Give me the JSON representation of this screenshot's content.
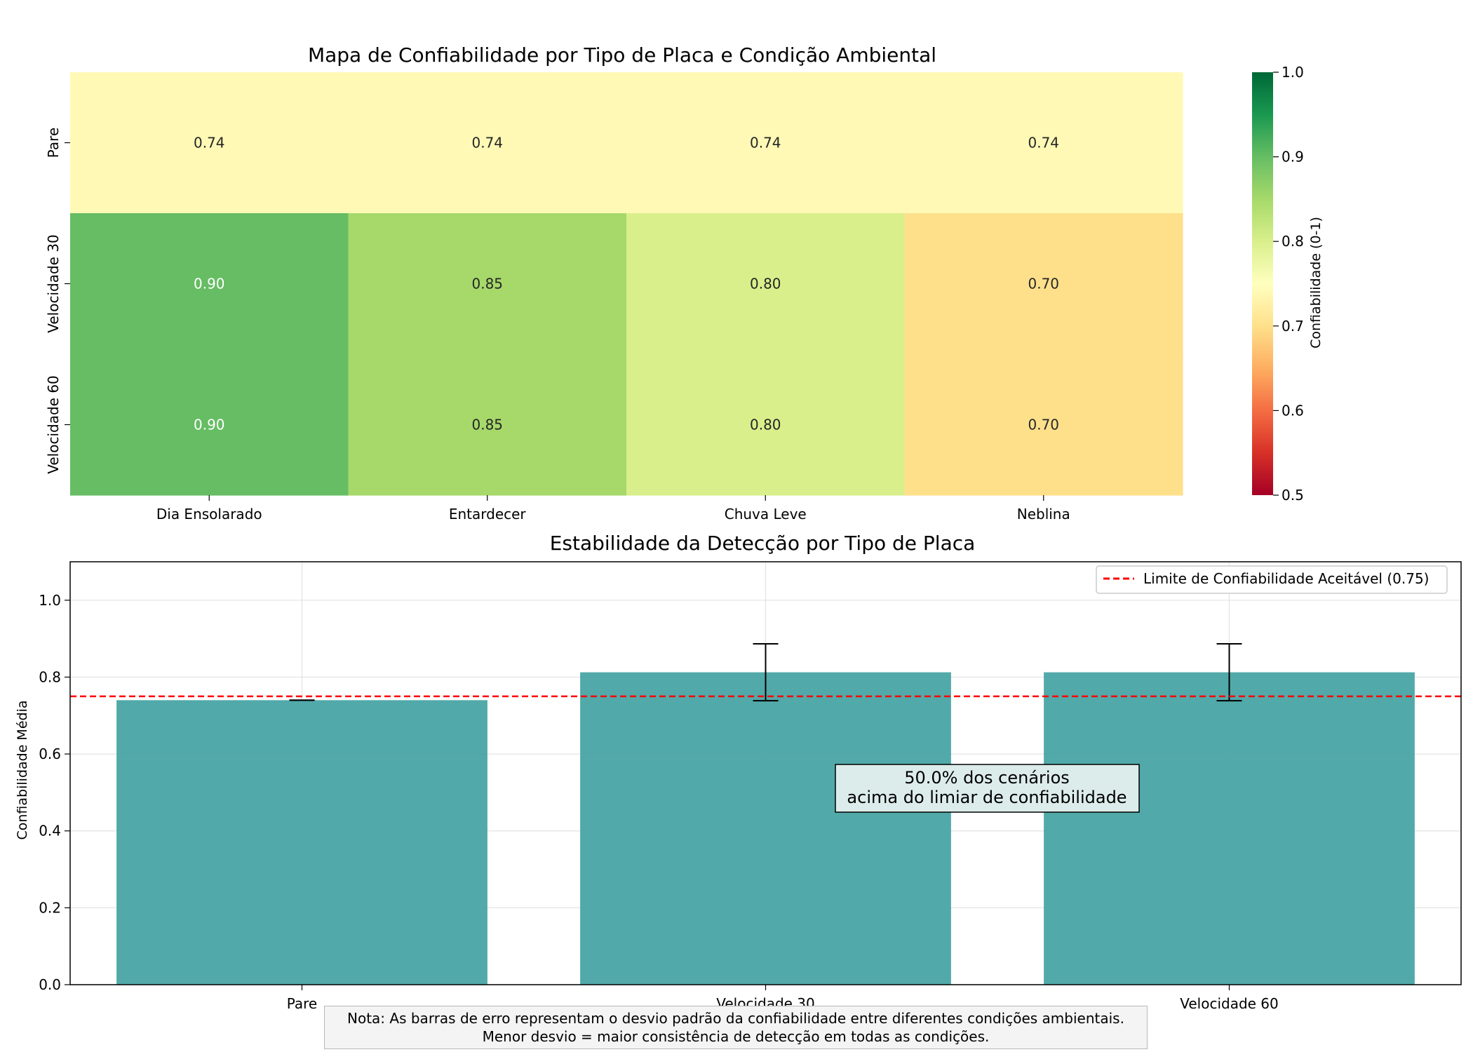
{
  "chart_data": [
    {
      "type": "heatmap",
      "title": "Mapa de Confiabilidade por Tipo de Placa e Condição Ambiental",
      "rows": [
        "Pare",
        "Velocidade 30",
        "Velocidade 60"
      ],
      "columns": [
        "Dia Ensolarado",
        "Entardecer",
        "Chuva Leve",
        "Neblina"
      ],
      "values": [
        [
          0.74,
          0.74,
          0.74,
          0.74
        ],
        [
          0.9,
          0.85,
          0.8,
          0.7
        ],
        [
          0.9,
          0.85,
          0.8,
          0.7
        ]
      ],
      "colorbar": {
        "label": "Confiabilidade (0-1)",
        "range": [
          0.5,
          1.0
        ],
        "ticks": [
          0.5,
          0.6,
          0.7,
          0.8,
          0.9,
          1.0
        ],
        "colormap": "RdYlGn"
      }
    },
    {
      "type": "bar",
      "title": "Estabilidade da Detecção por Tipo de Placa",
      "categories": [
        "Pare",
        "Velocidade 30",
        "Velocidade 60"
      ],
      "values": [
        0.74,
        0.8125,
        0.8125
      ],
      "errors": [
        0.0,
        0.074,
        0.074
      ],
      "ylabel": "Confiabilidade Média",
      "xlabel": "",
      "ylim": [
        0.0,
        1.1
      ],
      "yticks": [
        0.0,
        0.2,
        0.4,
        0.6,
        0.8,
        1.0
      ],
      "grid": true,
      "bar_color": "#4ca6a6",
      "threshold": {
        "value": 0.75,
        "label": "Limite de Confiabilidade Aceitável (0.75)",
        "color": "#ff0000"
      },
      "legend_position": "upper-right",
      "annotation": [
        "50.0% dos cenários",
        "acima do limiar de confiabilidade"
      ]
    }
  ],
  "note": [
    "Nota: As barras de erro representam o desvio padrão da confiabilidade entre diferentes condições ambientais.",
    "Menor desvio = maior consistência de detecção em todas as condições."
  ]
}
